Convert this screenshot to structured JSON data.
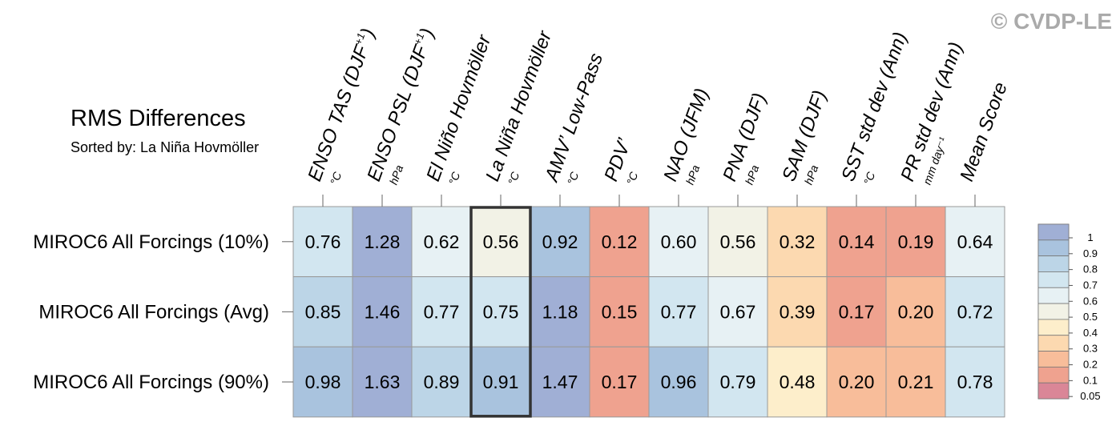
{
  "watermark": "© CVDP-LE",
  "chart_data": {
    "type": "heatmap",
    "title": "RMS Differences",
    "subtitle": "Sorted by: La Niña Hovmöller",
    "columns": [
      {
        "label": "ENSO TAS (DJF",
        "sup": "+1",
        "close": ")",
        "unit": "°C"
      },
      {
        "label": "ENSO PSL (DJF",
        "sup": "+1",
        "close": ")",
        "unit": "hPa"
      },
      {
        "label": "El Niño Hovmöller",
        "sup": "",
        "close": "",
        "unit": "°C"
      },
      {
        "label": "La Niña Hovmöller",
        "sup": "",
        "close": "",
        "unit": "°C"
      },
      {
        "label": "AMV’ Low-Pass",
        "sup": "",
        "close": "",
        "unit": "°C"
      },
      {
        "label": "PDV’",
        "sup": "",
        "close": "",
        "unit": "°C"
      },
      {
        "label": "NAO (JFM)",
        "sup": "",
        "close": "",
        "unit": "hPa"
      },
      {
        "label": "PNA (DJF)",
        "sup": "",
        "close": "",
        "unit": "hPa"
      },
      {
        "label": "SAM (DJF)",
        "sup": "",
        "close": "",
        "unit": "hPa"
      },
      {
        "label": "SST std dev (Ann)",
        "sup": "",
        "close": "",
        "unit": "°C"
      },
      {
        "label": "PR std dev (Ann)",
        "sup": "",
        "close": "",
        "unit": "mm day⁻¹"
      },
      {
        "label": "Mean Score",
        "sup": "",
        "close": "",
        "unit": ""
      }
    ],
    "rows": [
      {
        "label": "MIROC6 All Forcings (10%)",
        "values": [
          "0.76",
          "1.28",
          "0.62",
          "0.56",
          "0.92",
          "0.12",
          "0.60",
          "0.56",
          "0.32",
          "0.14",
          "0.19",
          "0.64"
        ]
      },
      {
        "label": "MIROC6 All Forcings (Avg)",
        "values": [
          "0.85",
          "1.46",
          "0.77",
          "0.75",
          "1.18",
          "0.15",
          "0.77",
          "0.67",
          "0.39",
          "0.17",
          "0.20",
          "0.72"
        ]
      },
      {
        "label": "MIROC6 All Forcings (90%)",
        "values": [
          "0.98",
          "1.63",
          "0.89",
          "0.91",
          "1.47",
          "0.17",
          "0.96",
          "0.79",
          "0.48",
          "0.20",
          "0.21",
          "0.78"
        ]
      }
    ],
    "highlighted_column": 3,
    "colorbar": {
      "labels": [
        "1",
        "0.9",
        "0.8",
        "0.7",
        "0.6",
        "0.5",
        "0.4",
        "0.3",
        "0.2",
        "0.1",
        "0.05"
      ],
      "colors": [
        "#a0afd5",
        "#a9c3de",
        "#bcd5e7",
        "#d2e6f0",
        "#e7f1f4",
        "#f2f2e6",
        "#fdeecb",
        "#fcd9b0",
        "#f8bd9a",
        "#efa28f",
        "#da8697"
      ]
    }
  }
}
